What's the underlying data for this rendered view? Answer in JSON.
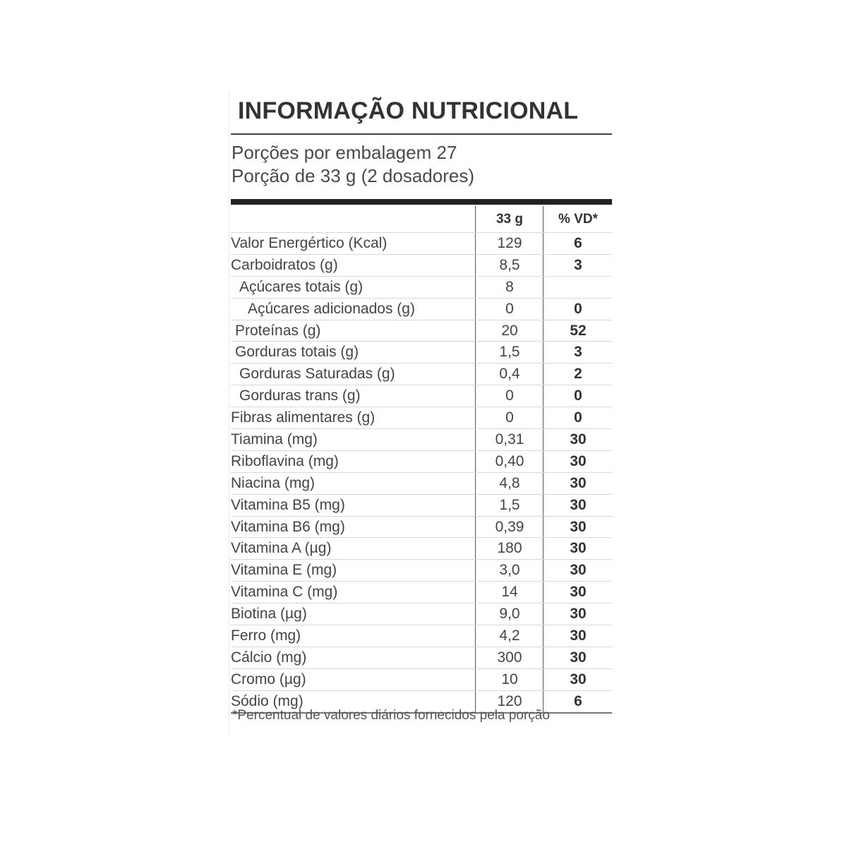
{
  "title": "INFORMAÇÃO NUTRICIONAL",
  "servings_per_package": "Porções por embalagem 27",
  "serving_size": "Porção de 33 g (2 dosadores)",
  "table": {
    "headers": [
      "",
      "33 g",
      "% VD*"
    ],
    "rows": [
      {
        "name": "Valor Energértico (Kcal)",
        "value": "129",
        "vd": "6",
        "indent": 0
      },
      {
        "name": "Carboidratos (g)",
        "value": "8,5",
        "vd": "3",
        "indent": 0
      },
      {
        "name": "Açúcares totais (g)",
        "value": "8",
        "vd": "",
        "indent": 2
      },
      {
        "name": "Açúcares adicionados (g)",
        "value": "0",
        "vd": "0",
        "indent": 4
      },
      {
        "name": "Proteínas (g)",
        "value": "20",
        "vd": "52",
        "indent": 1
      },
      {
        "name": "Gorduras totais (g)",
        "value": "1,5",
        "vd": "3",
        "indent": 1
      },
      {
        "name": "Gorduras Saturadas (g)",
        "value": "0,4",
        "vd": "2",
        "indent": 2
      },
      {
        "name": "Gorduras trans (g)",
        "value": "0",
        "vd": "0",
        "indent": 2
      },
      {
        "name": "Fibras alimentares (g)",
        "value": "0",
        "vd": "0",
        "indent": 0
      },
      {
        "name": "Tiamina (mg)",
        "value": "0,31",
        "vd": "30",
        "indent": 0
      },
      {
        "name": "Riboflavina (mg)",
        "value": "0,40",
        "vd": "30",
        "indent": 0
      },
      {
        "name": "Niacina (mg)",
        "value": "4,8",
        "vd": "30",
        "indent": 0
      },
      {
        "name": "Vitamina B5 (mg)",
        "value": "1,5",
        "vd": "30",
        "indent": 0
      },
      {
        "name": "Vitamina B6 (mg)",
        "value": "0,39",
        "vd": "30",
        "indent": 0
      },
      {
        "name": "Vitamina A (µg)",
        "value": "180",
        "vd": "30",
        "indent": 0
      },
      {
        "name": "Vitamina E (mg)",
        "value": "3,0",
        "vd": "30",
        "indent": 0
      },
      {
        "name": "Vitamina C (mg)",
        "value": "14",
        "vd": "30",
        "indent": 0
      },
      {
        "name": "Biotina (µg)",
        "value": "9,0",
        "vd": "30",
        "indent": 0
      },
      {
        "name": "Ferro (mg)",
        "value": "4,2",
        "vd": "30",
        "indent": 0
      },
      {
        "name": "Cálcio (mg)",
        "value": "300",
        "vd": "30",
        "indent": 0
      },
      {
        "name": "Cromo (µg)",
        "value": "10",
        "vd": "30",
        "indent": 0
      },
      {
        "name": "Sódio (mg)",
        "value": "120",
        "vd": "6",
        "indent": 0
      }
    ]
  },
  "footnote": "*Percentual de valores diários fornecidos pela porção"
}
